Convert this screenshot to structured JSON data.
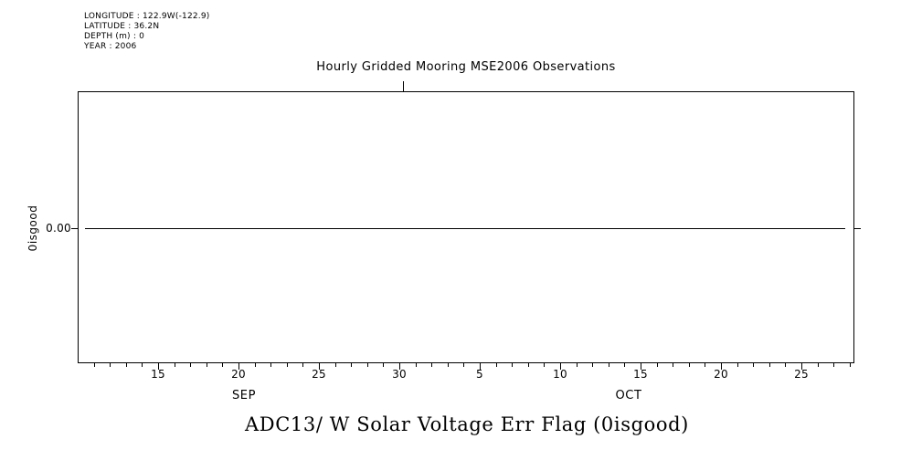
{
  "meta": {
    "lines": [
      "LONGITUDE : 122.9W(-122.9)",
      "LATITUDE : 36.2N",
      "DEPTH (m) : 0",
      "YEAR : 2006"
    ]
  },
  "chart_data": {
    "type": "line",
    "title": "Hourly Gridded Mooring MSE2006 Observations",
    "footer_title": "ADC13/ W Solar Voltage Err Flag (0isgood)",
    "ylabel": "0isgood",
    "grid": false,
    "legend": false,
    "colors": {
      "line": "#000000",
      "axis": "#000000",
      "background": "#ffffff"
    },
    "y_axis": {
      "ticks": [
        {
          "label": "0.00",
          "value": 0.0
        }
      ]
    },
    "x_axis": {
      "unit": "days",
      "range_note": "time axis from about SEP 10 to OCT 28, year 2006",
      "major_ticks": [
        {
          "label": "15",
          "month": "SEP",
          "day_index": 5
        },
        {
          "label": "20",
          "month": "SEP",
          "day_index": 10
        },
        {
          "label": "25",
          "month": "SEP",
          "day_index": 15
        },
        {
          "label": "30",
          "month": "SEP",
          "day_index": 20
        },
        {
          "label": "5",
          "month": "OCT",
          "day_index": 25
        },
        {
          "label": "10",
          "month": "OCT",
          "day_index": 30
        },
        {
          "label": "15",
          "month": "OCT",
          "day_index": 35
        },
        {
          "label": "20",
          "month": "OCT",
          "day_index": 40
        },
        {
          "label": "25",
          "month": "OCT",
          "day_index": 45
        }
      ],
      "minor_tick_interval_days": 1,
      "month_labels": [
        {
          "label": "SEP"
        },
        {
          "label": "OCT"
        }
      ]
    },
    "series": [
      {
        "name": "ADC13/ W Solar Voltage Err Flag (0isgood)",
        "shape": "constant",
        "value": 0.0,
        "x_start": "SEP 10",
        "x_end": "OCT 28"
      }
    ]
  }
}
